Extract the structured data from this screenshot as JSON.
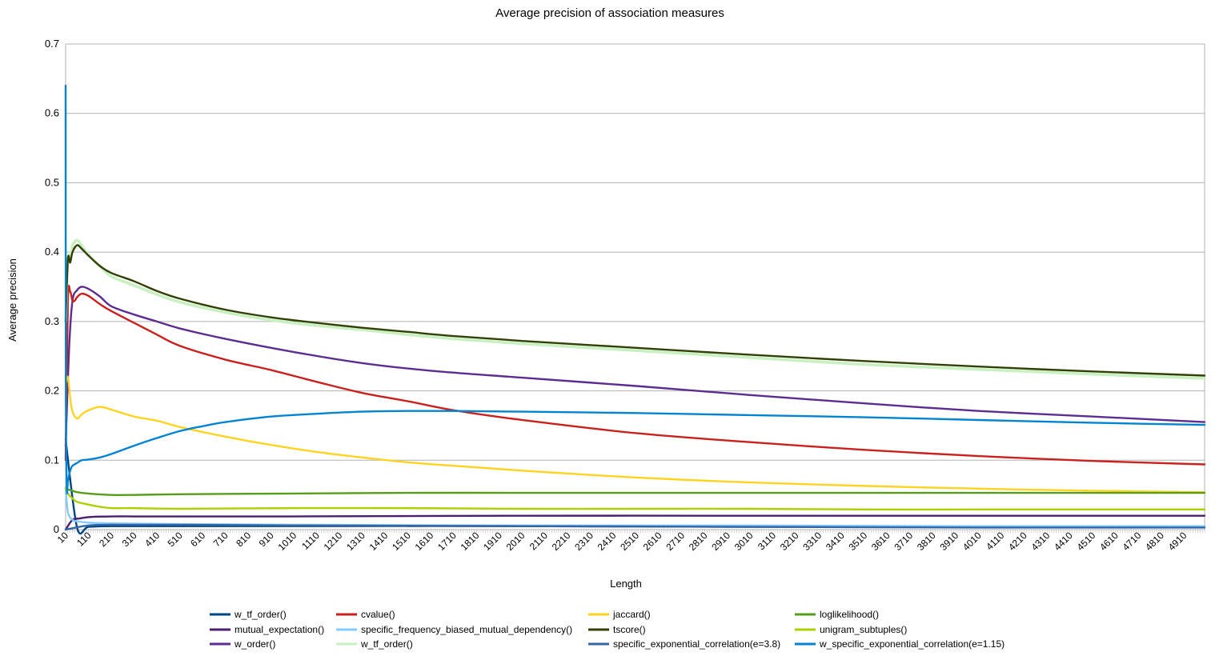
{
  "chart_data": {
    "type": "line",
    "title": "Average precision of association measures",
    "xlabel": "Length",
    "ylabel": "Average precision",
    "ylim": [
      0,
      0.7
    ],
    "xlim": [
      10,
      5000
    ],
    "y_ticks": [
      "0",
      "0.1",
      "0.2",
      "0.3",
      "0.4",
      "0.5",
      "0.6",
      "0.7"
    ],
    "x_ticks": [
      "10",
      "110",
      "210",
      "310",
      "410",
      "510",
      "610",
      "710",
      "810",
      "910",
      "1010",
      "1110",
      "1210",
      "1310",
      "1410",
      "1510",
      "1610",
      "1710",
      "1810",
      "1910",
      "2010",
      "2110",
      "2210",
      "2310",
      "2410",
      "2510",
      "2610",
      "2710",
      "2810",
      "2910",
      "3010",
      "3110",
      "3210",
      "3310",
      "3410",
      "3510",
      "3610",
      "3710",
      "3810",
      "3910",
      "4010",
      "4110",
      "4210",
      "4310",
      "4410",
      "4510",
      "4610",
      "4710",
      "4810",
      "4910"
    ],
    "grid": true,
    "legend_position": "bottom",
    "series": [
      {
        "name": "w_tf_order()",
        "color": "#004586",
        "x": [
          10,
          60,
          110,
          210,
          500,
          1000,
          2000,
          3000,
          4000,
          5000
        ],
        "y": [
          0.13,
          0.003,
          0.004,
          0.005,
          0.005,
          0.005,
          0.005,
          0.004,
          0.004,
          0.004
        ]
      },
      {
        "name": "mutual_expectation()",
        "color": "#4b1f6f",
        "x": [
          10,
          40,
          70,
          110,
          210,
          310,
          500,
          1000,
          2000,
          3000,
          4000,
          5000
        ],
        "y": [
          0.0,
          0.014,
          0.016,
          0.018,
          0.019,
          0.019,
          0.019,
          0.019,
          0.02,
          0.02,
          0.02,
          0.02
        ]
      },
      {
        "name": "w_order()",
        "color": "#5c2d91",
        "x": [
          10,
          25,
          40,
          60,
          80,
          110,
          160,
          210,
          310,
          410,
          510,
          710,
          1010,
          1310,
          1610,
          2010,
          2510,
          3010,
          3510,
          4010,
          4510,
          5000
        ],
        "y": [
          0.12,
          0.26,
          0.33,
          0.345,
          0.35,
          0.347,
          0.336,
          0.322,
          0.31,
          0.3,
          0.29,
          0.275,
          0.256,
          0.24,
          0.229,
          0.219,
          0.207,
          0.194,
          0.182,
          0.171,
          0.163,
          0.155
        ]
      },
      {
        "name": "cvalue()",
        "color": "#c9211e",
        "x": [
          10,
          20,
          30,
          40,
          50,
          60,
          80,
          110,
          160,
          210,
          310,
          410,
          510,
          710,
          910,
          1110,
          1310,
          1510,
          1710,
          2010,
          2510,
          3010,
          3510,
          4010,
          4510,
          5000
        ],
        "y": [
          0.1,
          0.33,
          0.343,
          0.33,
          0.33,
          0.335,
          0.34,
          0.337,
          0.325,
          0.315,
          0.298,
          0.281,
          0.265,
          0.245,
          0.23,
          0.213,
          0.197,
          0.185,
          0.172,
          0.158,
          0.139,
          0.126,
          0.115,
          0.106,
          0.099,
          0.094
        ]
      },
      {
        "name": "specific_frequency_biased_mutual_dependency()",
        "color": "#83caff",
        "x": [
          10,
          20,
          40,
          60,
          110,
          210,
          500,
          1000,
          2000,
          3000,
          4000,
          5000
        ],
        "y": [
          0.06,
          0.025,
          0.014,
          0.012,
          0.01,
          0.009,
          0.008,
          0.007,
          0.006,
          0.006,
          0.005,
          0.005
        ]
      },
      {
        "name": "w_tf_order()",
        "color": "#c8f0c0",
        "x": [
          10,
          20,
          30,
          40,
          60,
          80,
          110,
          160,
          210,
          310,
          410,
          510,
          710,
          910,
          1110,
          1310,
          1510,
          1710,
          2010,
          2510,
          3010,
          3510,
          4010,
          4510,
          5000
        ],
        "y": [
          0.3,
          0.39,
          0.39,
          0.41,
          0.417,
          0.41,
          0.396,
          0.38,
          0.365,
          0.352,
          0.339,
          0.328,
          0.313,
          0.302,
          0.294,
          0.288,
          0.281,
          0.275,
          0.268,
          0.258,
          0.248,
          0.238,
          0.231,
          0.224,
          0.218
        ]
      },
      {
        "name": "jaccard()",
        "color": "#ffd320",
        "x": [
          10,
          20,
          30,
          40,
          60,
          80,
          110,
          160,
          210,
          310,
          410,
          510,
          710,
          910,
          1110,
          1310,
          1510,
          1710,
          2010,
          2510,
          3010,
          3510,
          4010,
          4510,
          5000
        ],
        "y": [
          0.21,
          0.22,
          0.19,
          0.17,
          0.16,
          0.166,
          0.172,
          0.177,
          0.173,
          0.163,
          0.157,
          0.148,
          0.134,
          0.122,
          0.112,
          0.104,
          0.097,
          0.092,
          0.085,
          0.075,
          0.068,
          0.063,
          0.059,
          0.056,
          0.054
        ]
      },
      {
        "name": "tscore()",
        "color": "#314004",
        "x": [
          10,
          20,
          30,
          40,
          60,
          80,
          110,
          160,
          210,
          310,
          410,
          510,
          710,
          910,
          1110,
          1310,
          1510,
          1710,
          2010,
          2510,
          3010,
          3510,
          4010,
          4510,
          5000
        ],
        "y": [
          0.3,
          0.39,
          0.385,
          0.4,
          0.41,
          0.405,
          0.395,
          0.38,
          0.37,
          0.358,
          0.344,
          0.333,
          0.317,
          0.306,
          0.298,
          0.291,
          0.285,
          0.279,
          0.272,
          0.262,
          0.252,
          0.243,
          0.235,
          0.228,
          0.222
        ]
      },
      {
        "name": "specific_exponential_correlation(e=3.8)",
        "color": "#3465a4",
        "x": [
          10,
          40,
          110,
          210,
          500,
          1000,
          2000,
          3000,
          4000,
          5000
        ],
        "y": [
          0.0,
          0.002,
          0.006,
          0.007,
          0.007,
          0.006,
          0.005,
          0.004,
          0.003,
          0.003
        ]
      },
      {
        "name": "loglikelihood()",
        "color": "#579d1c",
        "x": [
          10,
          20,
          40,
          60,
          110,
          210,
          310,
          510,
          1010,
          1510,
          2010,
          2510,
          3010,
          3510,
          4010,
          4510,
          5000
        ],
        "y": [
          0.06,
          0.058,
          0.056,
          0.054,
          0.052,
          0.05,
          0.05,
          0.051,
          0.052,
          0.053,
          0.053,
          0.053,
          0.053,
          0.053,
          0.053,
          0.053,
          0.053
        ]
      },
      {
        "name": "unigram_subtuples()",
        "color": "#aecf00",
        "x": [
          10,
          20,
          40,
          60,
          110,
          160,
          210,
          310,
          510,
          1010,
          1510,
          2010,
          2510,
          3010,
          3510,
          4010,
          4510,
          5000
        ],
        "y": [
          0.06,
          0.052,
          0.045,
          0.04,
          0.036,
          0.033,
          0.031,
          0.031,
          0.03,
          0.031,
          0.031,
          0.03,
          0.03,
          0.03,
          0.029,
          0.029,
          0.029,
          0.029
        ]
      },
      {
        "name": "w_specific_exponential_correlation(e=1.15)",
        "color": "#0084d1",
        "x": [
          10,
          11,
          15,
          20,
          30,
          40,
          60,
          80,
          110,
          160,
          210,
          310,
          410,
          510,
          610,
          710,
          910,
          1110,
          1310,
          1510,
          1710,
          2010,
          2510,
          3010,
          3510,
          4010,
          4510,
          5000
        ],
        "y": [
          0.64,
          0.2,
          0.06,
          0.07,
          0.085,
          0.092,
          0.096,
          0.1,
          0.101,
          0.104,
          0.109,
          0.121,
          0.132,
          0.142,
          0.149,
          0.155,
          0.163,
          0.167,
          0.17,
          0.171,
          0.171,
          0.17,
          0.168,
          0.165,
          0.162,
          0.158,
          0.154,
          0.151
        ]
      }
    ]
  }
}
